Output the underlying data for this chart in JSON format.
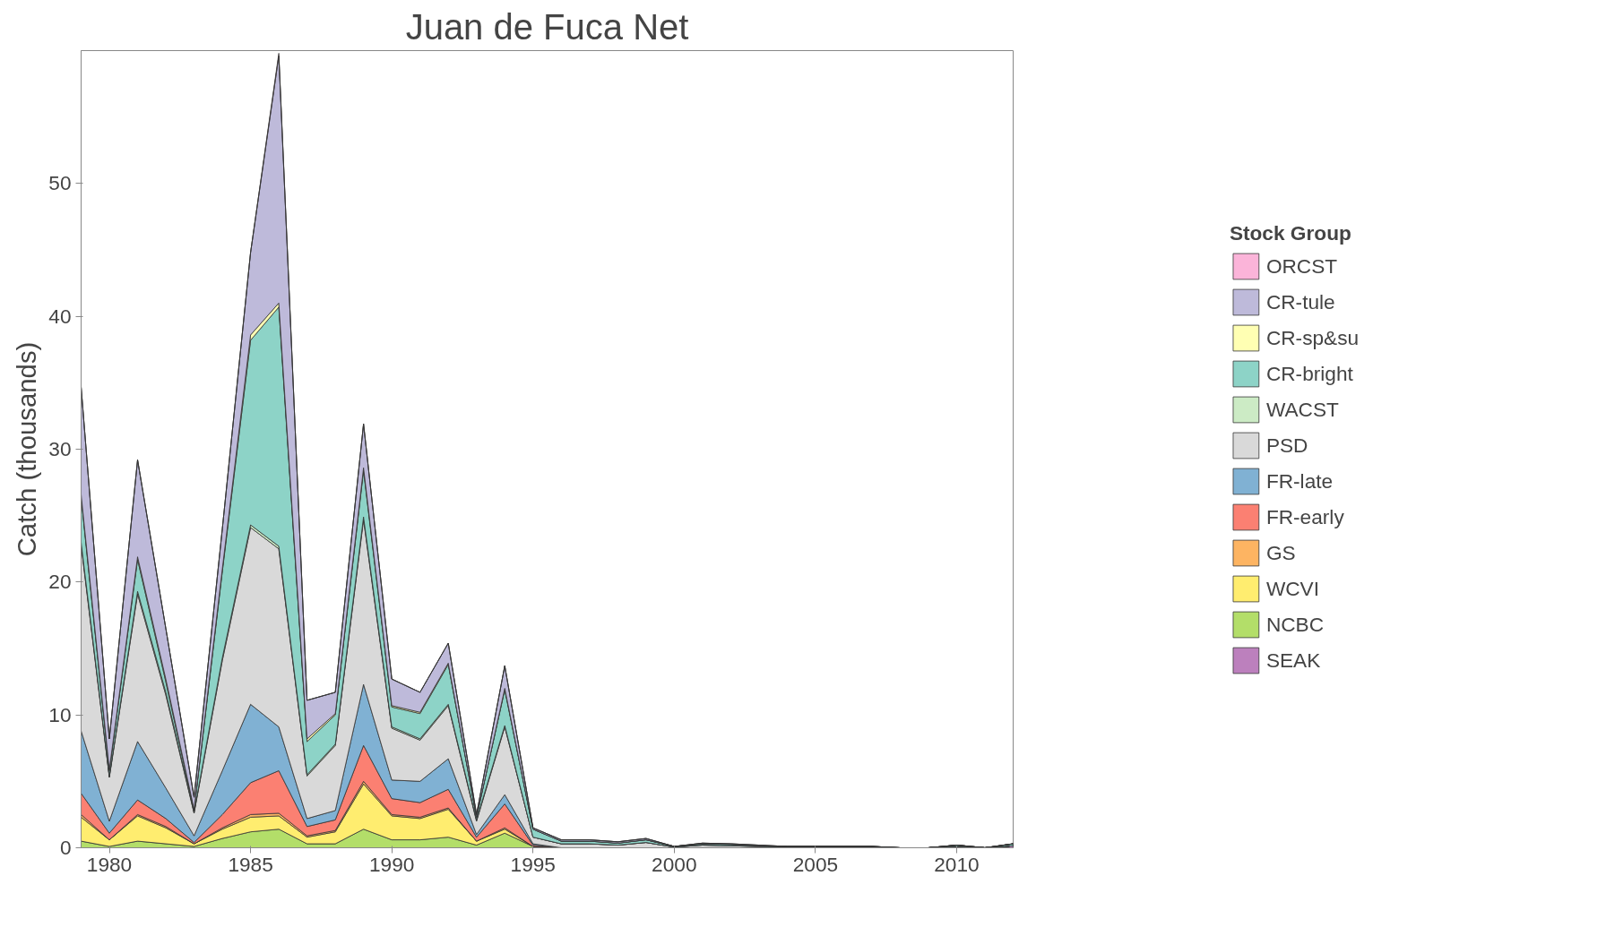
{
  "chart_data": {
    "type": "area",
    "title": "Juan de Fuca Net",
    "ylabel": "Catch (thousands)",
    "legend_title": "Stock Group",
    "stacked": true,
    "legend": "right",
    "grid": false,
    "x": [
      1979,
      1980,
      1981,
      1982,
      1983,
      1984,
      1985,
      1986,
      1987,
      1988,
      1989,
      1990,
      1991,
      1992,
      1993,
      1994,
      1995,
      1996,
      1997,
      1998,
      1999,
      2000,
      2001,
      2002,
      2003,
      2004,
      2005,
      2006,
      2007,
      2008,
      2009,
      2010,
      2011,
      2012
    ],
    "xlim": [
      1979,
      2012
    ],
    "xticks": [
      1980,
      1985,
      1990,
      1995,
      2000,
      2005,
      2010
    ],
    "ylim": [
      0,
      60
    ],
    "yticks": [
      0,
      10,
      20,
      30,
      40,
      50
    ],
    "series": [
      {
        "name": "SEAK",
        "color": "#bc80bd",
        "values": [
          0,
          0,
          0,
          0,
          0,
          0,
          0,
          0,
          0,
          0,
          0,
          0,
          0,
          0,
          0,
          0,
          0,
          0,
          0,
          0,
          0,
          0,
          0,
          0,
          0,
          0,
          0,
          0,
          0,
          0,
          0,
          0.1,
          0,
          0.15
        ]
      },
      {
        "name": "NCBC",
        "color": "#b3de69",
        "values": [
          0.5,
          0.1,
          0.5,
          0.3,
          0.1,
          0.7,
          1.2,
          1.4,
          0.3,
          0.3,
          1.4,
          0.6,
          0.6,
          0.8,
          0.2,
          1.1,
          0.1,
          0,
          0,
          0,
          0,
          0,
          0,
          0,
          0,
          0,
          0,
          0,
          0,
          0,
          0,
          0,
          0,
          0
        ]
      },
      {
        "name": "WCVI",
        "color": "#ffed6f",
        "values": [
          1.8,
          0.5,
          1.9,
          1.2,
          0.2,
          0.7,
          1.1,
          1.0,
          0.5,
          0.9,
          3.4,
          1.8,
          1.6,
          2.1,
          0.3,
          0.3,
          0,
          0,
          0,
          0,
          0,
          0,
          0,
          0,
          0,
          0,
          0,
          0,
          0,
          0,
          0,
          0,
          0,
          0
        ]
      },
      {
        "name": "GS",
        "color": "#fdb462",
        "values": [
          0.2,
          0,
          0.1,
          0.1,
          0,
          0.1,
          0.2,
          0.2,
          0.1,
          0.1,
          0.2,
          0.1,
          0.1,
          0.1,
          0,
          0.1,
          0,
          0,
          0,
          0,
          0,
          0,
          0,
          0,
          0,
          0,
          0,
          0,
          0,
          0,
          0,
          0,
          0,
          0
        ]
      },
      {
        "name": "FR-early",
        "color": "#fb8072",
        "values": [
          1.6,
          0.5,
          1.1,
          0.6,
          0.1,
          1.0,
          2.4,
          3.2,
          0.7,
          0.8,
          2.7,
          1.2,
          1.1,
          1.4,
          0.3,
          1.8,
          0.1,
          0,
          0,
          0,
          0,
          0,
          0,
          0,
          0,
          0,
          0,
          0,
          0,
          0,
          0,
          0,
          0,
          0
        ]
      },
      {
        "name": "FR-late",
        "color": "#80b1d3",
        "values": [
          4.7,
          0.9,
          4.4,
          2.3,
          0.5,
          3.3,
          5.9,
          3.3,
          0.6,
          0.7,
          4.6,
          1.4,
          1.6,
          2.3,
          0.2,
          0.7,
          0.1,
          0,
          0,
          0,
          0,
          0,
          0,
          0,
          0,
          0,
          0,
          0,
          0,
          0,
          0,
          0,
          0,
          0
        ]
      },
      {
        "name": "PSD",
        "color": "#d9d9d9",
        "values": [
          14.0,
          3.3,
          11.1,
          7.0,
          1.7,
          8.3,
          13.3,
          13.4,
          3.2,
          4.9,
          12.4,
          3.9,
          3.1,
          4.0,
          1.0,
          5.1,
          0.5,
          0.3,
          0.3,
          0.2,
          0.4,
          0.05,
          0.2,
          0.15,
          0.1,
          0.05,
          0.05,
          0.05,
          0.05,
          0,
          0,
          0,
          0,
          0
        ]
      },
      {
        "name": "WACST",
        "color": "#ccebc5",
        "values": [
          0.2,
          0.1,
          0.2,
          0.2,
          0.1,
          0.2,
          0.2,
          0.2,
          0.1,
          0.1,
          0.2,
          0.1,
          0.1,
          0.1,
          0.1,
          0.1,
          0,
          0,
          0,
          0,
          0,
          0,
          0,
          0,
          0,
          0,
          0,
          0,
          0,
          0,
          0,
          0,
          0,
          0
        ]
      },
      {
        "name": "CR-bright",
        "color": "#8dd3c7",
        "values": [
          3.4,
          0.4,
          2.4,
          0.8,
          0.1,
          6.5,
          13.9,
          18.0,
          2.5,
          2.2,
          3.5,
          1.5,
          1.9,
          3.0,
          0.2,
          2.7,
          0.6,
          0.2,
          0.2,
          0.15,
          0.2,
          0.05,
          0.1,
          0.1,
          0.05,
          0.05,
          0.05,
          0.05,
          0.05,
          0,
          0,
          0.1,
          0,
          0.15
        ]
      },
      {
        "name": "CR-sp&su",
        "color": "#ffffb3",
        "values": [
          0.2,
          0.1,
          0.2,
          0.2,
          0.1,
          0.2,
          0.4,
          0.3,
          0.2,
          0.1,
          0.2,
          0.1,
          0.1,
          0.1,
          0,
          0.1,
          0,
          0,
          0,
          0,
          0,
          0,
          0,
          0,
          0,
          0,
          0,
          0,
          0,
          0,
          0,
          0,
          0,
          0
        ]
      },
      {
        "name": "CR-tule",
        "color": "#bebada",
        "values": [
          8.1,
          2.3,
          7.3,
          3.8,
          0.9,
          3.0,
          6.2,
          18.6,
          2.9,
          1.6,
          3.3,
          2.0,
          1.5,
          1.5,
          0.2,
          1.7,
          0.1,
          0.1,
          0.1,
          0.1,
          0.1,
          0,
          0.05,
          0.05,
          0.05,
          0,
          0,
          0,
          0,
          0,
          0,
          0,
          0,
          0
        ]
      },
      {
        "name": "ORCST",
        "color": "#fbb4d9",
        "values": [
          0,
          0,
          0,
          0,
          0,
          0,
          0,
          0.2,
          0,
          0,
          0,
          0,
          0,
          0,
          0,
          0,
          0,
          0,
          0,
          0,
          0,
          0,
          0,
          0,
          0,
          0,
          0,
          0,
          0,
          0,
          0,
          0,
          0,
          0
        ]
      }
    ]
  }
}
